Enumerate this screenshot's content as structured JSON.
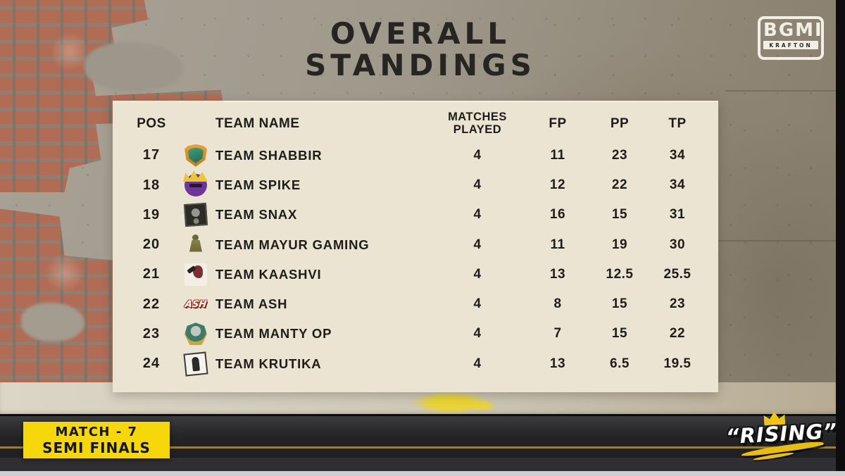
{
  "header": {
    "title_line1": "OVERALL",
    "title_line2": "STANDINGS"
  },
  "brand": {
    "name": "BGMI",
    "sub": "KRAFTON"
  },
  "table": {
    "columns": {
      "pos": "POS",
      "team": "TEAM NAME",
      "matches": "MATCHES PLAYED",
      "fp": "FP",
      "pp": "PP",
      "tp": "TP"
    },
    "rows": [
      {
        "pos": "17",
        "team": "TEAM SHABBIR",
        "logo_style": "shabbir",
        "logo_icon": "team-shabbir-logo-icon",
        "matches": "4",
        "fp": "11",
        "pp": "23",
        "tp": "34"
      },
      {
        "pos": "18",
        "team": "TEAM SPIKE",
        "logo_style": "spike",
        "logo_icon": "team-spike-logo-icon",
        "matches": "4",
        "fp": "12",
        "pp": "22",
        "tp": "34"
      },
      {
        "pos": "19",
        "team": "TEAM SNAX",
        "logo_style": "snax",
        "logo_icon": "team-snax-logo-icon",
        "matches": "4",
        "fp": "16",
        "pp": "15",
        "tp": "31"
      },
      {
        "pos": "20",
        "team": "TEAM MAYUR GAMING",
        "logo_style": "mayur",
        "logo_icon": "team-mayur-logo-icon",
        "matches": "4",
        "fp": "11",
        "pp": "19",
        "tp": "30"
      },
      {
        "pos": "21",
        "team": "TEAM KAASHVI",
        "logo_style": "kaashvi",
        "logo_icon": "team-kaashvi-logo-icon",
        "matches": "4",
        "fp": "13",
        "pp": "12.5",
        "tp": "25.5"
      },
      {
        "pos": "22",
        "team": "TEAM ASH",
        "logo_style": "ash",
        "logo_icon": "team-ash-logo-icon",
        "logo_text": "ASH",
        "matches": "4",
        "fp": "8",
        "pp": "15",
        "tp": "23"
      },
      {
        "pos": "23",
        "team": "TEAM MANTY OP",
        "logo_style": "manty",
        "logo_icon": "team-manty-op-logo-icon",
        "matches": "4",
        "fp": "7",
        "pp": "15",
        "tp": "22"
      },
      {
        "pos": "24",
        "team": "TEAM KRUTIKA",
        "logo_style": "krutika",
        "logo_icon": "team-krutika-logo-icon",
        "matches": "4",
        "fp": "13",
        "pp": "6.5",
        "tp": "19.5"
      }
    ]
  },
  "footer": {
    "match_line1": "MATCH - 7",
    "match_line2": "SEMI FINALS",
    "graffiti_text": "“RISING”"
  },
  "colors": {
    "accent_yellow": "#F6D70A",
    "panel_bg": "#ECE4D3",
    "text_dark": "#1D1D1A",
    "graffiti_white": "#FFFFFF",
    "road_dark": "#1B1B1E"
  }
}
